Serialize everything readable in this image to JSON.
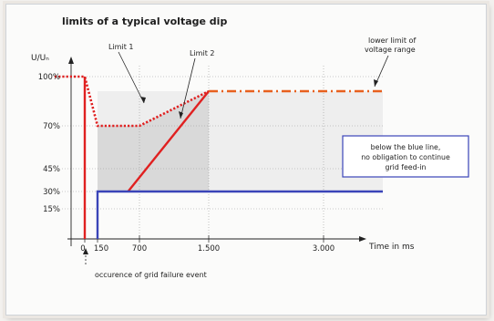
{
  "chart_data": {
    "type": "line",
    "title": "limits of a typical voltage dip",
    "ylabel": "U/Uₙ",
    "xlabel": "Time in ms",
    "xlim": [
      -130,
      3700
    ],
    "ylim": [
      0,
      110
    ],
    "x_ticks": [
      "0",
      "150",
      "700",
      "1.500",
      "3.000"
    ],
    "x_tick_values": [
      0,
      150,
      700,
      1500,
      3000
    ],
    "y_ticks": [
      "100%",
      "70%",
      "45%",
      "30%",
      "15%"
    ],
    "y_tick_values": [
      100,
      70,
      45,
      30,
      15
    ],
    "grid": true,
    "series": [
      {
        "name": "Limit 1",
        "style": "solid",
        "color": "#e02020",
        "points": [
          [
            0,
            100
          ],
          [
            0,
            0
          ]
        ]
      },
      {
        "name": "Limit 1",
        "style": "solid",
        "color": "#e02020",
        "points": [
          [
            550,
            30
          ],
          [
            1500,
            90
          ]
        ]
      },
      {
        "name": "Limit 2",
        "style": "dotted",
        "color": "#e02020",
        "points": [
          [
            -130,
            100
          ],
          [
            0,
            100
          ],
          [
            150,
            70
          ],
          [
            700,
            70
          ],
          [
            1500,
            90
          ]
        ]
      },
      {
        "name": "lower limit of voltage range",
        "style": "dashdot",
        "color": "#e8601e",
        "points": [
          [
            1500,
            90
          ],
          [
            3700,
            90
          ]
        ]
      },
      {
        "name": "",
        "style": "solid",
        "color": "#3a44b8",
        "points": [
          [
            150,
            0
          ],
          [
            150,
            30
          ],
          [
            3700,
            30
          ]
        ]
      }
    ],
    "annotations": {
      "limit1": "Limit 1",
      "limit2": "Limit 2",
      "lower_limit_line1": "lower limit of",
      "lower_limit_line2": "voltage range",
      "blue_box_line1": "below the blue line,",
      "blue_box_line2": "no obligation to continue",
      "blue_box_line3": "grid feed-in",
      "event_label": "occurence of grid failure event"
    },
    "colors": {
      "red": "#e02020",
      "orange": "#e8601e",
      "blue": "#3a44b8",
      "shade": "#d9d9d9"
    }
  }
}
